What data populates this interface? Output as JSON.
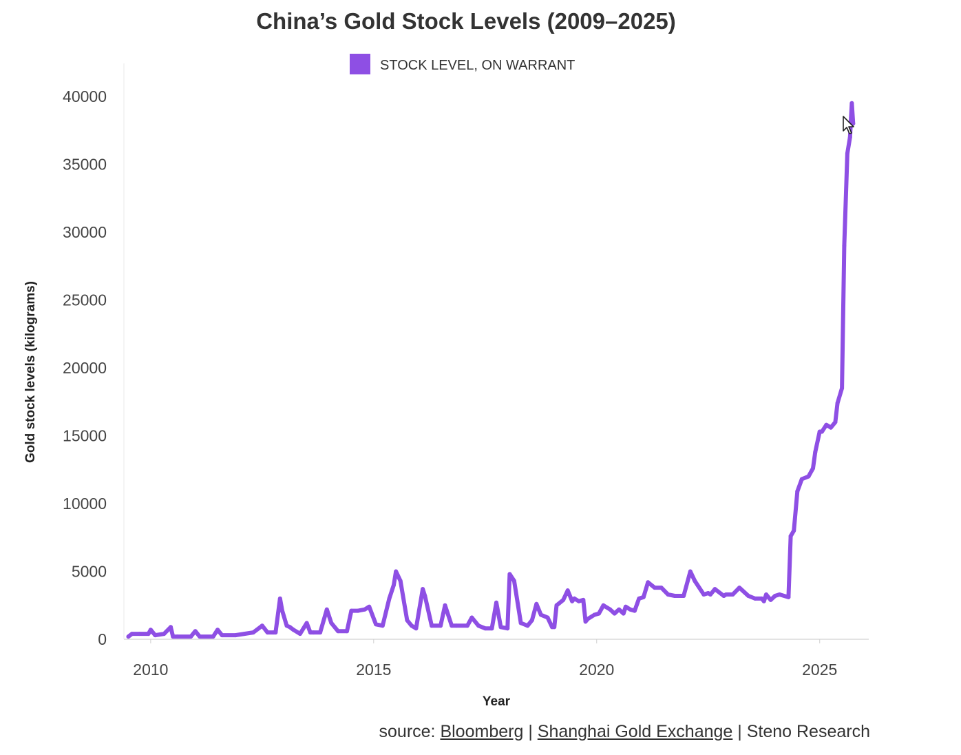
{
  "chart_data": {
    "type": "line",
    "title": "China’s Gold Stock Levels (2009–2025)",
    "xlabel": "Year",
    "ylabel": "Gold stock levels (kilograms)",
    "legend": {
      "position": "top-center",
      "entries": [
        "STOCK LEVEL, ON WARRANT"
      ]
    },
    "xlim": [
      2009.4,
      2026.1
    ],
    "ylim": [
      0,
      40000
    ],
    "x_ticks": [
      2010,
      2015,
      2020,
      2025
    ],
    "x_tick_labels": [
      "2010",
      "2015",
      "2020",
      "2025"
    ],
    "y_ticks": [
      0,
      5000,
      10000,
      15000,
      20000,
      25000,
      30000,
      35000,
      40000
    ],
    "y_tick_labels": [
      "0",
      "5000",
      "10000",
      "15000",
      "20000",
      "25000",
      "30000",
      "35000",
      "40000"
    ],
    "grid": false,
    "series": [
      {
        "name": "STOCK LEVEL, ON WARRANT",
        "color": "#8e4fe4",
        "x": [
          2009.5,
          2009.58,
          2009.75,
          2009.95,
          2010.0,
          2010.1,
          2010.3,
          2010.45,
          2010.5,
          2010.6,
          2010.9,
          2011.0,
          2011.1,
          2011.4,
          2011.5,
          2011.6,
          2011.9,
          2012.1,
          2012.3,
          2012.5,
          2012.62,
          2012.75,
          2012.8,
          2012.9,
          2012.95,
          2013.05,
          2013.12,
          2013.2,
          2013.35,
          2013.5,
          2013.58,
          2013.65,
          2013.8,
          2013.95,
          2014.05,
          2014.2,
          2014.4,
          2014.5,
          2014.65,
          2014.8,
          2014.9,
          2015.05,
          2015.2,
          2015.35,
          2015.45,
          2015.5,
          2015.6,
          2015.75,
          2015.85,
          2015.95,
          2016.1,
          2016.15,
          2016.3,
          2016.5,
          2016.6,
          2016.75,
          2016.85,
          2017.1,
          2017.2,
          2017.35,
          2017.5,
          2017.65,
          2017.75,
          2017.85,
          2018.0,
          2018.05,
          2018.15,
          2018.3,
          2018.45,
          2018.55,
          2018.65,
          2018.75,
          2018.9,
          2019.0,
          2019.05,
          2019.1,
          2019.25,
          2019.35,
          2019.45,
          2019.5,
          2019.6,
          2019.7,
          2019.75,
          2019.8,
          2019.95,
          2020.05,
          2020.15,
          2020.3,
          2020.4,
          2020.5,
          2020.6,
          2020.65,
          2020.75,
          2020.85,
          2020.95,
          2021.05,
          2021.15,
          2021.3,
          2021.45,
          2021.6,
          2021.75,
          2021.85,
          2021.95,
          2022.1,
          2022.2,
          2022.4,
          2022.5,
          2022.55,
          2022.65,
          2022.85,
          2022.9,
          2022.95,
          2023.05,
          2023.2,
          2023.4,
          2023.55,
          2023.7,
          2023.75,
          2023.8,
          2023.9,
          2024.0,
          2024.1,
          2024.3,
          2024.35,
          2024.42,
          2024.5,
          2024.6,
          2024.75,
          2024.85,
          2024.9,
          2025.0,
          2025.05,
          2025.15,
          2025.25,
          2025.35,
          2025.4,
          2025.5,
          2025.55,
          2025.62,
          2025.68,
          2025.72,
          2025.75
        ],
        "y": [
          200,
          400,
          400,
          400,
          700,
          300,
          400,
          900,
          200,
          200,
          200,
          600,
          200,
          200,
          700,
          300,
          300,
          400,
          500,
          1000,
          500,
          500,
          500,
          3000,
          2100,
          1000,
          900,
          700,
          400,
          1200,
          500,
          500,
          500,
          2200,
          1200,
          600,
          600,
          2100,
          2100,
          2200,
          2400,
          1100,
          1000,
          3000,
          4000,
          5000,
          4300,
          1400,
          1000,
          800,
          3700,
          3200,
          1000,
          1000,
          2500,
          1000,
          1000,
          1000,
          1600,
          1000,
          800,
          800,
          2700,
          900,
          800,
          4800,
          4300,
          1200,
          1000,
          1400,
          2600,
          1800,
          1600,
          900,
          900,
          2500,
          2900,
          3600,
          2800,
          3000,
          2800,
          2900,
          1300,
          1500,
          1800,
          1900,
          2500,
          2200,
          1900,
          2200,
          1900,
          2400,
          2200,
          2100,
          3000,
          3100,
          4200,
          3800,
          3800,
          3300,
          3200,
          3200,
          3200,
          5000,
          4300,
          3300,
          3400,
          3300,
          3700,
          3200,
          3300,
          3300,
          3300,
          3800,
          3200,
          3000,
          3000,
          2800,
          3300,
          2900,
          3200,
          3300,
          3100,
          7600,
          8000,
          10900,
          11800,
          12000,
          12600,
          13800,
          15300,
          15300,
          15800,
          15600,
          16000,
          17400,
          18500,
          29000,
          35800,
          37000,
          39500,
          38000
        ]
      }
    ]
  },
  "source": {
    "prefix": "source:",
    "sep": " | ",
    "links": [
      "Bloomberg",
      "Shanghai Gold Exchange"
    ],
    "tail": "Steno Research"
  }
}
